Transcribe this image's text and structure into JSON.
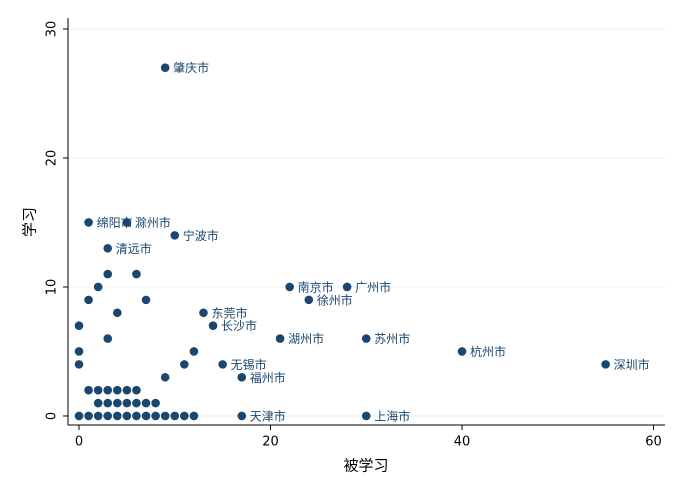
{
  "chart_data": {
    "type": "scatter",
    "x_label": "被学习",
    "y_label": "学习",
    "color": "#1a476f",
    "grid": true,
    "xlim": [
      -1.15,
      61.2
    ],
    "ylim": [
      -0.7,
      30.85
    ],
    "xticks": [
      0,
      20,
      40,
      60
    ],
    "yticks": [
      0,
      10,
      20,
      30
    ],
    "x": [
      9,
      1,
      5,
      10,
      3,
      22,
      28,
      24,
      21,
      30,
      40,
      55,
      15,
      17,
      17,
      30,
      14,
      13,
      3,
      6,
      2,
      1,
      0,
      0,
      0,
      0,
      1,
      2,
      3,
      4,
      5,
      6,
      7,
      8,
      9,
      10,
      11,
      12,
      2,
      3,
      4,
      5,
      6,
      7,
      8,
      1,
      2,
      3,
      4,
      5,
      6,
      12,
      9,
      11,
      3,
      4,
      7
    ],
    "y": [
      27,
      15,
      15,
      14,
      13,
      10,
      10,
      9,
      6,
      6,
      5,
      4,
      4,
      3,
      0,
      0,
      7,
      8,
      11,
      11,
      10,
      9,
      7,
      5,
      4,
      0,
      0,
      0,
      0,
      0,
      0,
      0,
      0,
      0,
      0,
      0,
      0,
      0,
      1,
      1,
      1,
      1,
      1,
      1,
      1,
      2,
      2,
      2,
      2,
      2,
      2,
      5,
      3,
      4,
      6,
      8,
      9
    ],
    "labels": [
      "肇庆市",
      "绵阳市",
      "滁州市",
      "宁波市",
      "清远市",
      "南京市",
      "广州市",
      "徐州市",
      "湖州市",
      "苏州市",
      "杭州市",
      "深圳市",
      "无锡市",
      "福州市",
      "天津市",
      "上海市",
      "长沙市",
      "东莞市",
      null,
      null,
      null,
      null,
      null,
      null,
      null,
      null,
      null,
      null,
      null,
      null,
      null,
      null,
      null,
      null,
      null,
      null,
      null,
      null,
      null,
      null,
      null,
      null,
      null,
      null,
      null,
      null,
      null,
      null,
      null,
      null,
      null,
      null,
      null,
      null,
      null,
      null,
      null
    ]
  }
}
